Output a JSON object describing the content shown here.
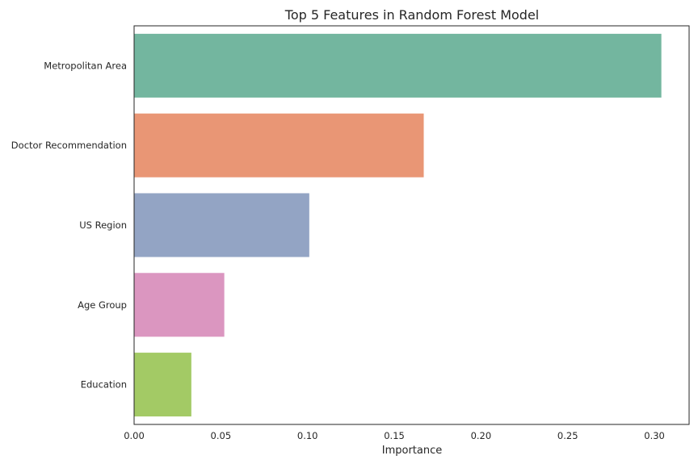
{
  "chart_data": {
    "type": "bar",
    "orientation": "horizontal",
    "title": "Top 5 Features in Random Forest Model",
    "xlabel": "Importance",
    "ylabel": "",
    "categories": [
      "Metropolitan Area",
      "Doctor Recommendation",
      "US Region",
      "Age Group",
      "Education"
    ],
    "values": [
      0.304,
      0.167,
      0.101,
      0.052,
      0.033
    ],
    "colors": [
      "#73b69f",
      "#e99675",
      "#93a4c4",
      "#db96c0",
      "#a3ca65"
    ],
    "xlim": [
      0,
      0.32
    ],
    "xticks": [
      0.0,
      0.05,
      0.1,
      0.15,
      0.2,
      0.25,
      0.3
    ],
    "xtick_labels": [
      "0.00",
      "0.05",
      "0.10",
      "0.15",
      "0.20",
      "0.25",
      "0.30"
    ],
    "grid": false,
    "legend": false
  }
}
